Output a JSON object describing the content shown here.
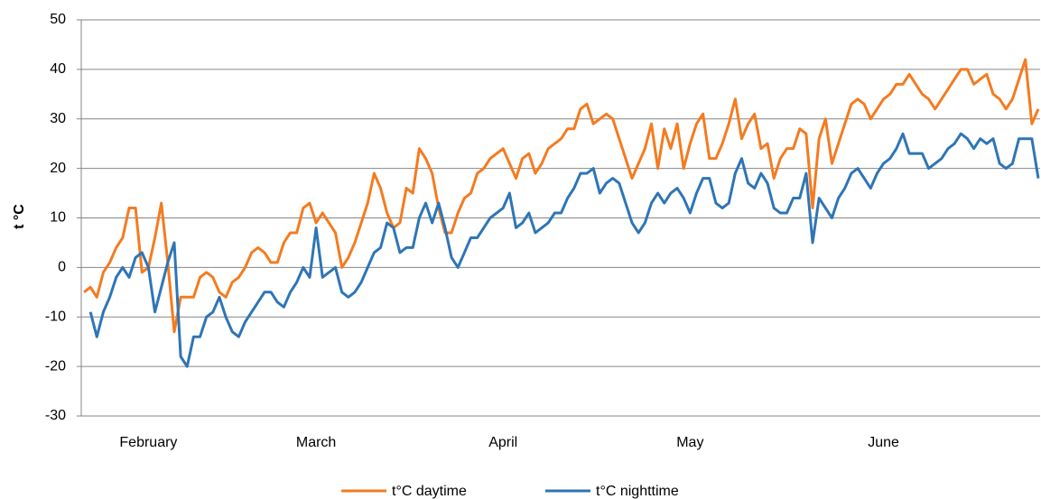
{
  "chart_data": {
    "type": "line",
    "y_label": "t °C",
    "categories": [
      null,
      null,
      null,
      null,
      null,
      null,
      null,
      null,
      null,
      null,
      "February",
      null,
      null,
      null,
      null,
      null,
      null,
      null,
      null,
      null,
      null,
      null,
      null,
      null,
      null,
      null,
      null,
      null,
      null,
      null,
      null,
      null,
      null,
      null,
      null,
      null,
      "March",
      null,
      null,
      null,
      null,
      null,
      null,
      null,
      null,
      null,
      null,
      null,
      null,
      null,
      null,
      null,
      null,
      null,
      null,
      null,
      null,
      null,
      null,
      null,
      null,
      null,
      null,
      null,
      null,
      "April",
      null,
      null,
      null,
      null,
      null,
      null,
      null,
      null,
      null,
      null,
      null,
      null,
      null,
      null,
      null,
      null,
      null,
      null,
      null,
      null,
      null,
      null,
      null,
      null,
      null,
      null,
      null,
      null,
      "May",
      null,
      null,
      null,
      null,
      null,
      null,
      null,
      null,
      null,
      null,
      null,
      null,
      null,
      null,
      null,
      null,
      null,
      null,
      null,
      null,
      null,
      null,
      null,
      null,
      null,
      null,
      null,
      null,
      null,
      "June",
      null,
      null,
      null,
      null,
      null,
      null,
      null,
      null,
      null,
      null,
      null,
      null,
      null,
      null,
      null,
      null,
      null,
      null,
      null,
      null,
      null,
      null,
      null,
      null
    ],
    "series": [
      {
        "name": "t°C daytime",
        "color": "#f47b20",
        "values": [
          -5,
          -4,
          -6,
          -1,
          1,
          4,
          6,
          12,
          12,
          -1,
          0,
          6,
          13,
          1,
          -13,
          -6,
          -6,
          -6,
          -2,
          -1,
          -2,
          -5,
          -6,
          -3,
          -2,
          0,
          3,
          4,
          3,
          1,
          1,
          5,
          7,
          7,
          12,
          13,
          9,
          11,
          9,
          7,
          0,
          2,
          5,
          9,
          13,
          19,
          16,
          11,
          8,
          9,
          16,
          15,
          24,
          22,
          19,
          12,
          7,
          7,
          11,
          14,
          15,
          19,
          20,
          22,
          23,
          24,
          21,
          18,
          22,
          23,
          19,
          21,
          24,
          25,
          26,
          28,
          28,
          32,
          33,
          29,
          30,
          31,
          30,
          26,
          22,
          18,
          21,
          24,
          29,
          20,
          28,
          24,
          29,
          20,
          25,
          29,
          31,
          22,
          22,
          25,
          29,
          34,
          26,
          29,
          31,
          24,
          25,
          18,
          22,
          24,
          24,
          28,
          27,
          12,
          26,
          30,
          21,
          25,
          29,
          33,
          34,
          33,
          30,
          32,
          34,
          35,
          37,
          37,
          39,
          37,
          35,
          34,
          32,
          34,
          36,
          38,
          40,
          40,
          37,
          38,
          39,
          35,
          34,
          32,
          34,
          38,
          42,
          29,
          32
        ]
      },
      {
        "name": "t°C nighttime",
        "color": "#2e75b6",
        "values": [
          null,
          -9,
          -14,
          -9,
          -6,
          -2,
          0,
          -2,
          2,
          3,
          0,
          -9,
          -4,
          1,
          5,
          -18,
          -20,
          -14,
          -14,
          -10,
          -9,
          -6,
          -10,
          -13,
          -14,
          -11,
          -9,
          -7,
          -5,
          -5,
          -7,
          -8,
          -5,
          -3,
          0,
          -2,
          8,
          -2,
          -1,
          0,
          -5,
          -6,
          -5,
          -3,
          0,
          3,
          4,
          9,
          8,
          3,
          4,
          4,
          10,
          13,
          9,
          13,
          8,
          2,
          0,
          3,
          6,
          6,
          8,
          10,
          11,
          12,
          15,
          8,
          9,
          11,
          7,
          8,
          9,
          11,
          11,
          14,
          16,
          19,
          19,
          20,
          15,
          17,
          18,
          17,
          13,
          9,
          7,
          9,
          13,
          15,
          13,
          15,
          16,
          14,
          11,
          15,
          18,
          18,
          13,
          12,
          13,
          19,
          22,
          17,
          16,
          19,
          17,
          12,
          11,
          11,
          14,
          14,
          19,
          5,
          14,
          12,
          10,
          14,
          16,
          19,
          20,
          18,
          16,
          19,
          21,
          22,
          24,
          27,
          23,
          23,
          23,
          20,
          21,
          22,
          24,
          25,
          27,
          26,
          24,
          26,
          25,
          26,
          21,
          20,
          21,
          26,
          26,
          26,
          18
        ]
      }
    ],
    "ylim": [
      -30,
      50
    ],
    "yticks": [
      -30,
      -20,
      -10,
      0,
      10,
      20,
      30,
      40,
      50
    ],
    "grid": true,
    "legend": "bottom"
  }
}
